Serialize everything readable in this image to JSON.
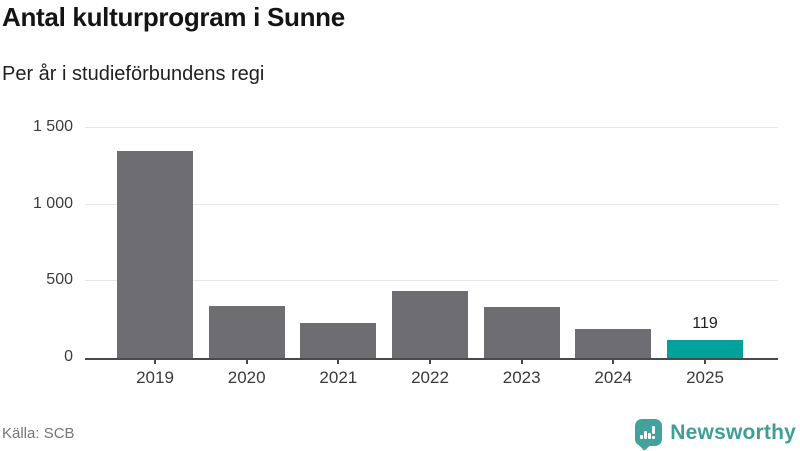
{
  "header": {
    "title": "Antal kulturprogram i Sunne",
    "subtitle": "Per år i studieförbundens regi"
  },
  "chart_data": {
    "type": "bar",
    "title": "Antal kulturprogram i Sunne",
    "subtitle": "Per år i studieförbundens regi",
    "categories": [
      "2019",
      "2020",
      "2021",
      "2022",
      "2023",
      "2024",
      "2025"
    ],
    "values": [
      1350,
      340,
      230,
      435,
      335,
      190,
      119
    ],
    "xlabel": "",
    "ylabel": "",
    "ylim": [
      0,
      1500
    ],
    "yticks": [
      0,
      500,
      1000,
      1500
    ],
    "ytick_labels": [
      "0",
      "500",
      "1 000",
      "1 500"
    ],
    "grid": "horizontal",
    "legend": "none",
    "highlight_index": 6,
    "bar_label": {
      "index": 6,
      "text": "119"
    },
    "colors": {
      "bar": "#6d6d72",
      "highlight": "#00a29b",
      "grid": "#e8e8e8",
      "axis": "#4a4a4a"
    }
  },
  "footer": {
    "source": "Källa: SCB",
    "brand": "Newsworthy",
    "brand_color": "#3f9f98",
    "brand_icon": "newsworthy-speech-bubble-bar-chart"
  }
}
